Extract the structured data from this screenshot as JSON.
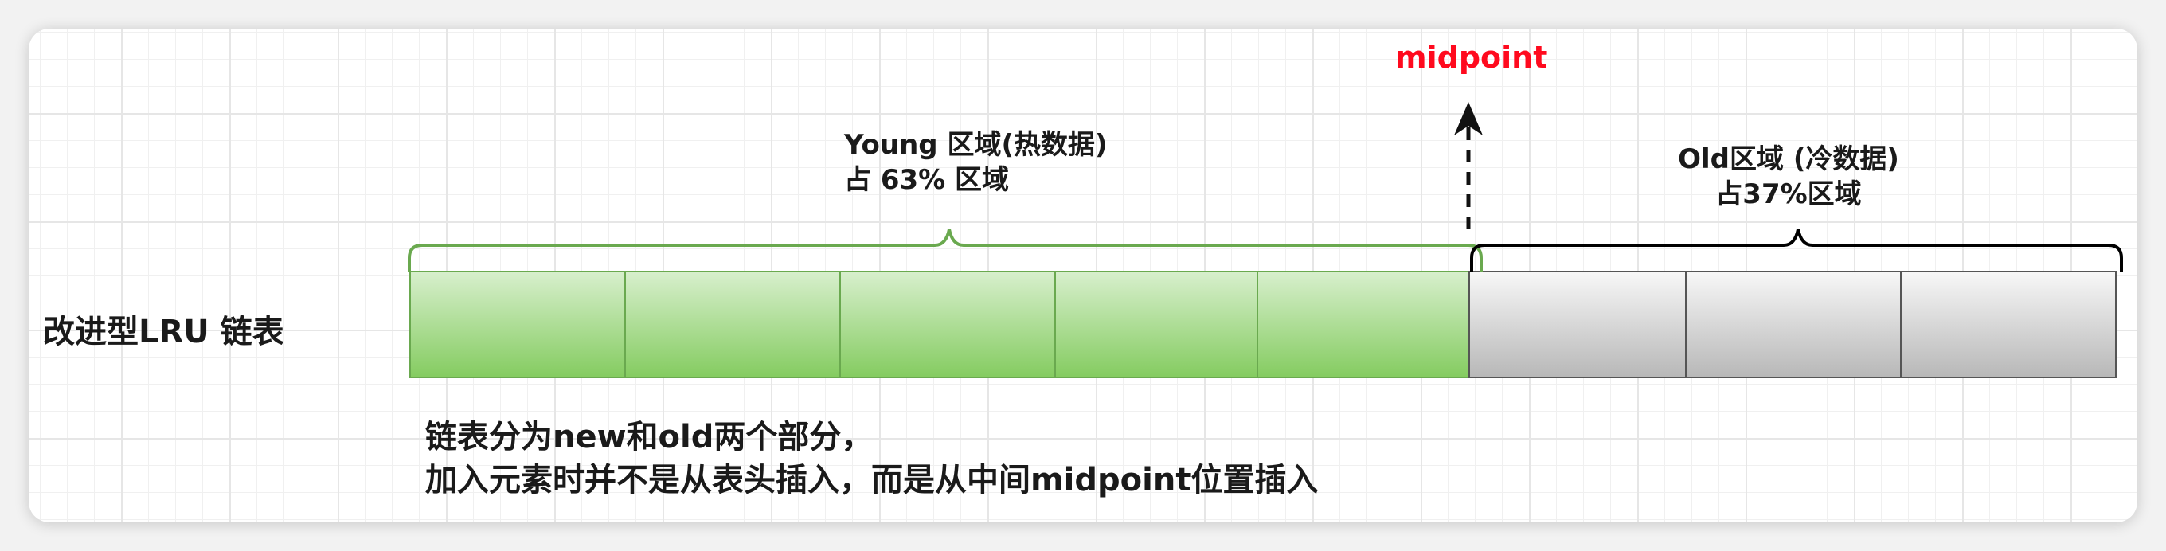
{
  "diagram": {
    "bar_label": "改进型LRU 链表",
    "midpoint_label": "midpoint",
    "young_region": {
      "line1": "Young 区域(热数据)",
      "line2": "占 63% 区域",
      "cell_count": 5,
      "share_percent": 63
    },
    "old_region": {
      "line1": "Old区域 (冷数据)",
      "line2": "占37%区域",
      "cell_count": 3,
      "share_percent": 37
    },
    "description": {
      "line1": "链表分为new和old两个部分，",
      "line2": "加入元素时并不是从表头插入，而是从中间midpoint位置插入"
    },
    "colors": {
      "young_fill_top": "#d7efcc",
      "young_fill_bottom": "#85cc61",
      "young_brace": "#6aa94f",
      "old_fill_top": "#f7f7f7",
      "old_fill_bottom": "#b8b8b8",
      "old_brace": "#000000",
      "midpoint": "#ff0a1e"
    }
  }
}
